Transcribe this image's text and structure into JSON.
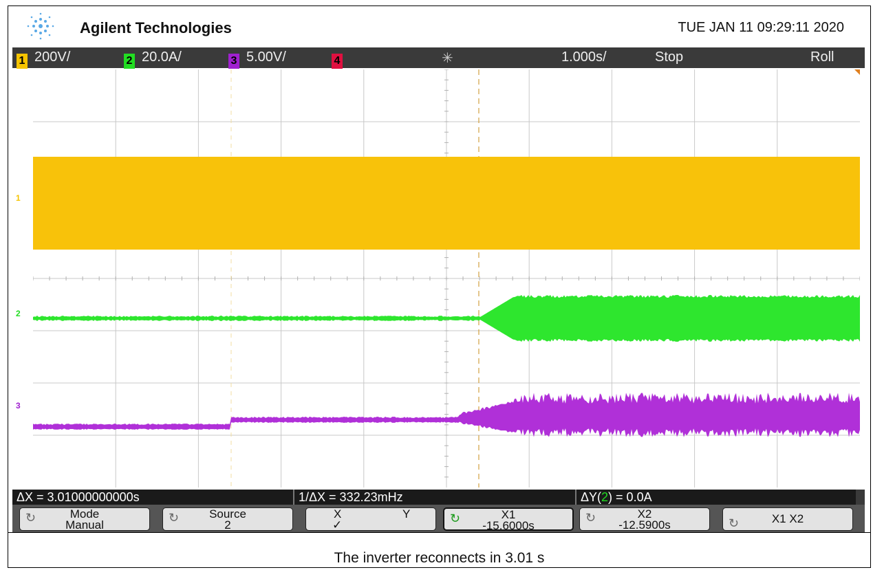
{
  "header": {
    "brand": "Agilent Technologies",
    "datetime": "TUE JAN 11 09:29:11 2020",
    "logo_icon": "agilent-spark-icon"
  },
  "status": {
    "channels": [
      {
        "number": "1",
        "scale": "200V/",
        "color": "#f6c400"
      },
      {
        "number": "2",
        "scale": "20.0A/",
        "color": "#22dd22"
      },
      {
        "number": "3",
        "scale": "5.00V/",
        "color": "#a020d0"
      },
      {
        "number": "4",
        "scale": "",
        "color": "#e01040"
      }
    ],
    "acq_icon": "acquisition-spark-icon",
    "timebase": "1.000s/",
    "run_state": "Stop",
    "mode": "Roll"
  },
  "markers": {
    "ch1": "1",
    "ch2": "2",
    "ch3": "3"
  },
  "readout": {
    "delta_x": "ΔX = 3.01000000000s",
    "inv_delta_x": "1/ΔX = 332.23mHz",
    "delta_y_prefix": "ΔY(",
    "delta_y_channel": "2",
    "delta_y_suffix": ") = 0.0A"
  },
  "softkeys": [
    {
      "line1": "Mode",
      "line2": "Manual"
    },
    {
      "line1": "Source",
      "line2": "2"
    },
    {
      "line1": "X",
      "line1b": "Y",
      "line2": "✓"
    },
    {
      "line1": "X1",
      "line2": "-15.6000s"
    },
    {
      "line1": "X2",
      "line2": "-12.5900s"
    },
    {
      "line1": "X1 X2",
      "line2": ""
    }
  ],
  "caption": "The inverter reconnects in 3.01 s"
}
